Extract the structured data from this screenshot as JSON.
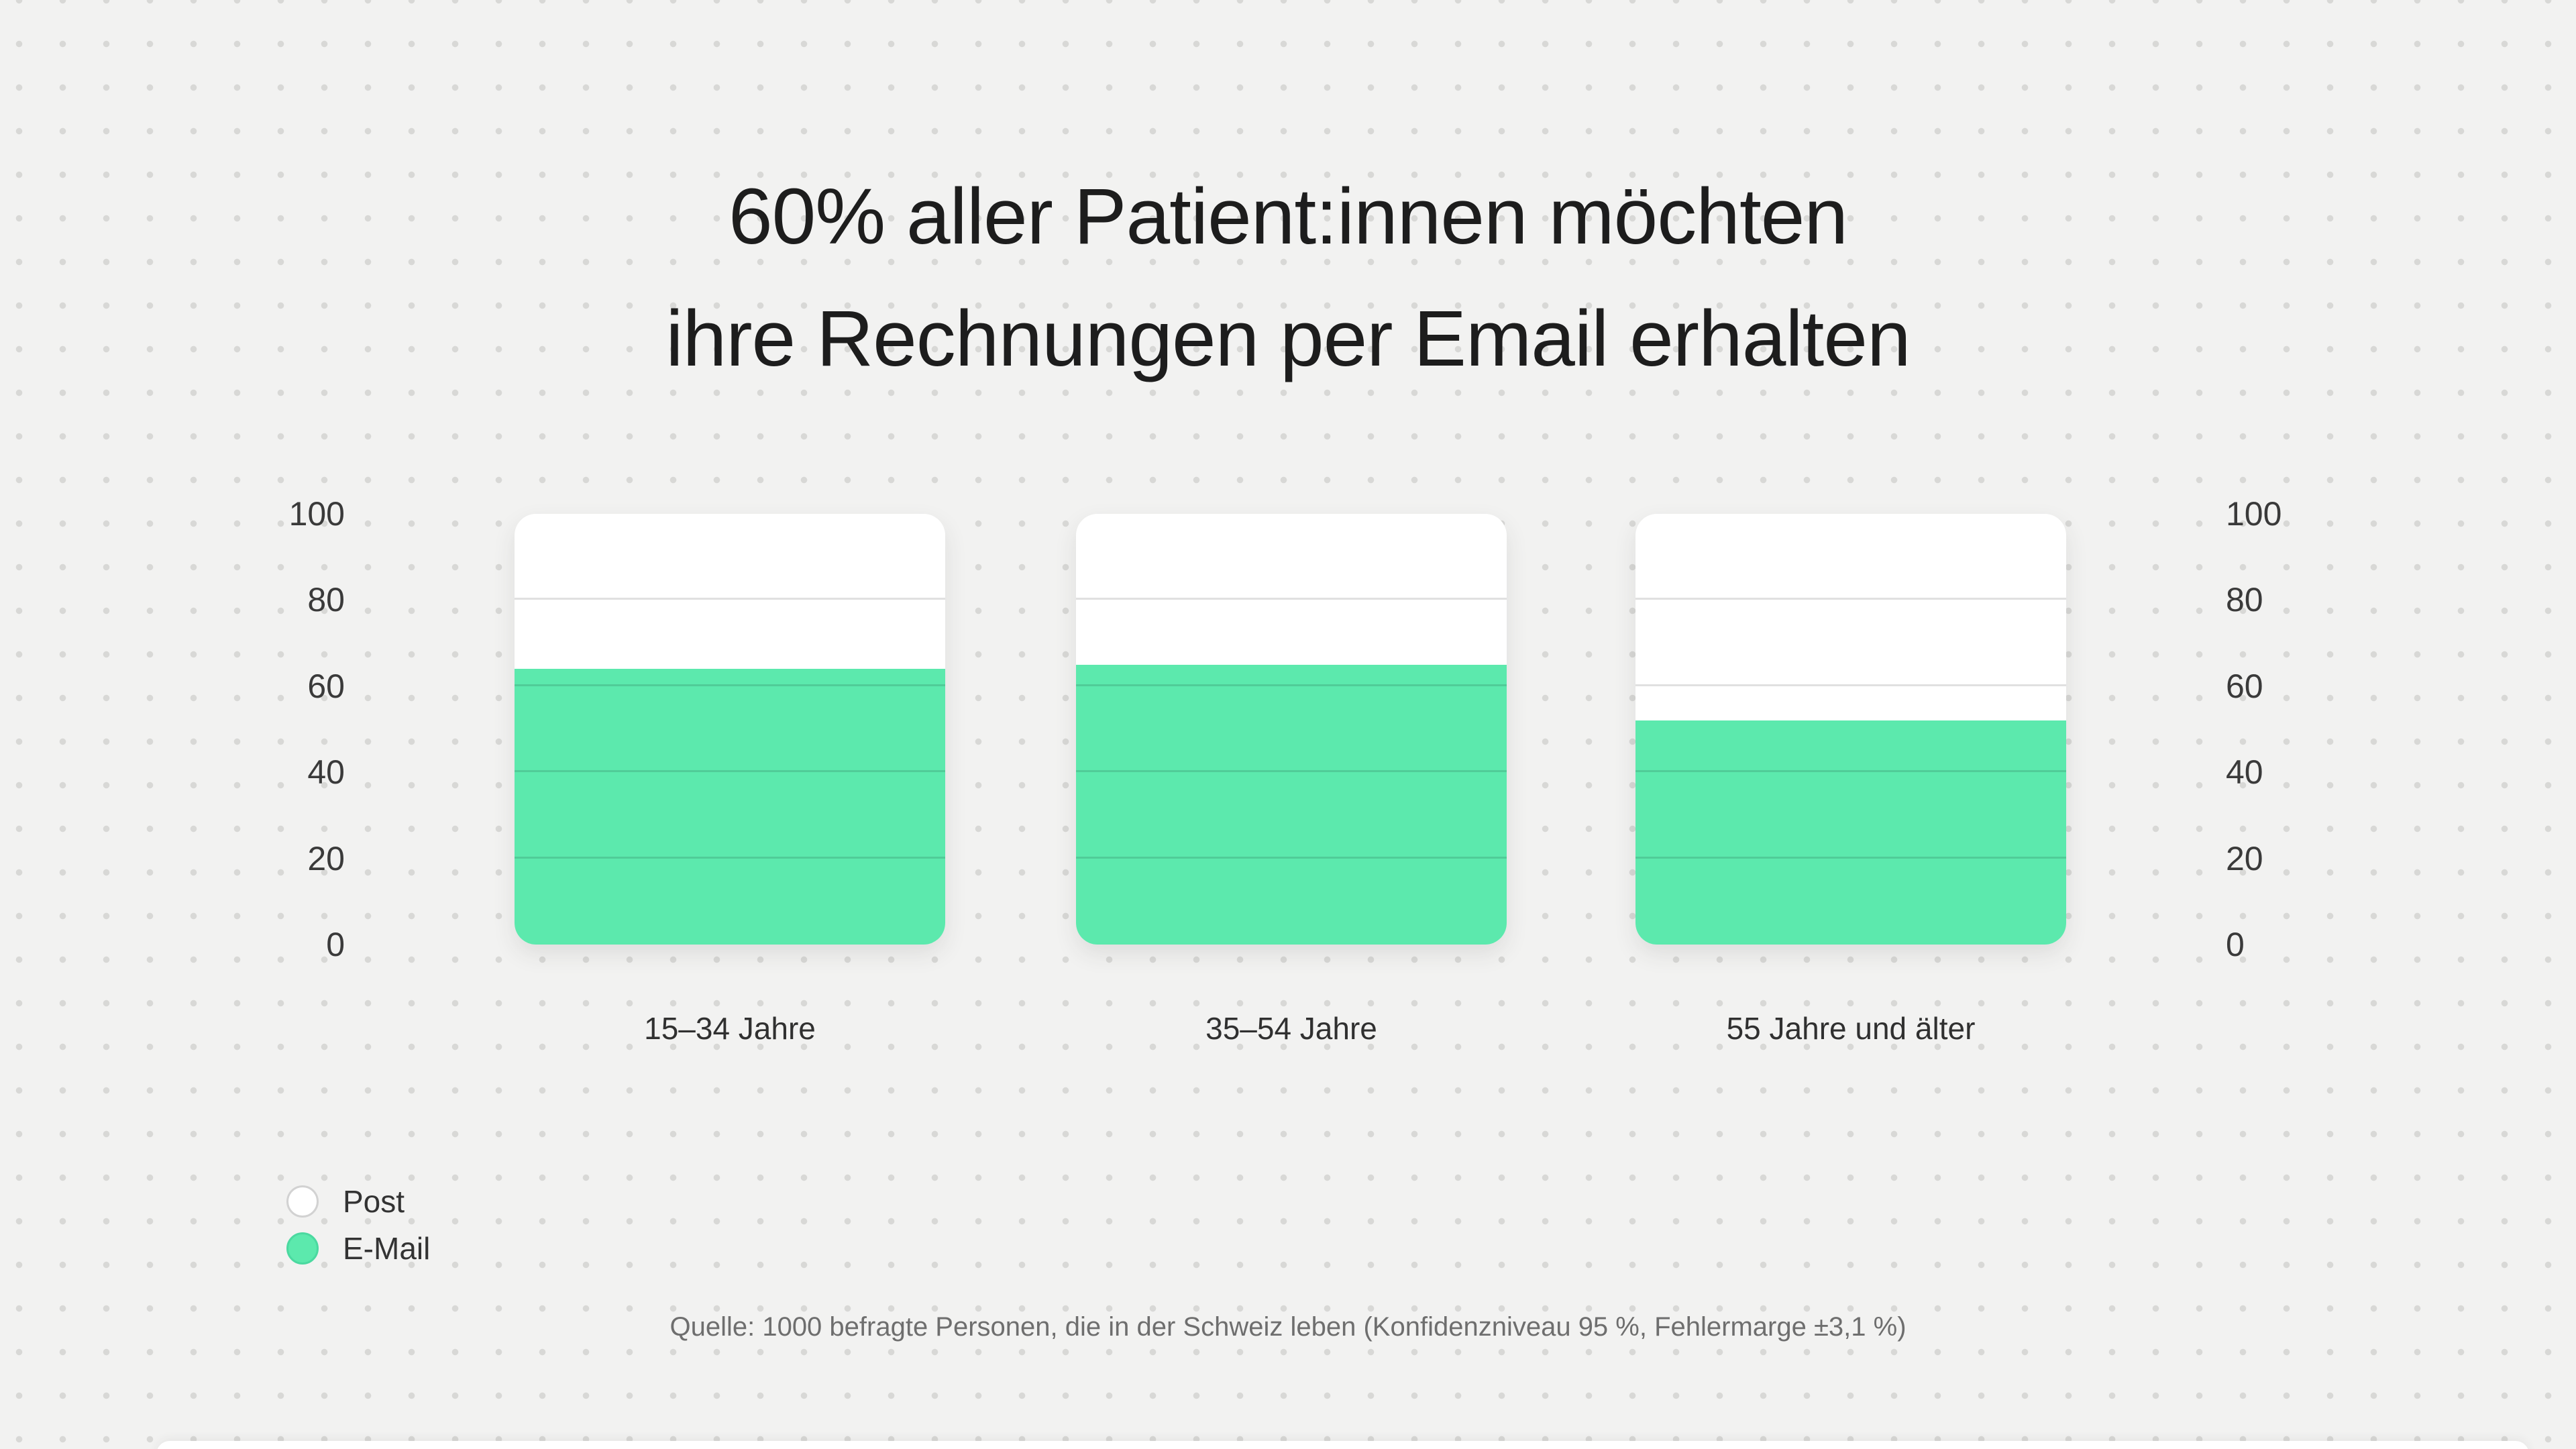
{
  "title": {
    "line1": "60% aller Patient:innen möchten",
    "line2": "ihre Rechnungen per Email erhalten"
  },
  "chart_data": {
    "type": "bar",
    "stacked": true,
    "orientation": "vertical",
    "categories": [
      "15–34 Jahre",
      "35–54 Jahre",
      "55 Jahre und älter"
    ],
    "series": [
      {
        "name": "Post",
        "color": "#ffffff",
        "values": [
          36,
          35,
          48
        ]
      },
      {
        "name": "E-Mail",
        "color": "#5ce9ad",
        "values": [
          64,
          65,
          52
        ]
      }
    ],
    "ylim": [
      0,
      100
    ],
    "yticks": [
      100,
      80,
      60,
      40,
      20,
      0
    ],
    "y_axis_sides": [
      "left",
      "right"
    ],
    "grid": true,
    "gridline_values": [
      80,
      60,
      40,
      20
    ],
    "legend_position": "bottom-left",
    "title": "60% aller Patient:innen möchten ihre Rechnungen per Email erhalten"
  },
  "legend": {
    "items": [
      {
        "label": "Post",
        "color": "#ffffff"
      },
      {
        "label": "E-Mail",
        "color": "#5ce9ad"
      }
    ]
  },
  "source": "Quelle: 1000 befragte Personen, die in der Schweiz leben (Konfidenzniveau 95 %, Fehlermarge ±3,1 %)",
  "colors": {
    "background": "#f2f2f1",
    "dot_grid": "#d8d8d6",
    "accent_green": "#5ce9ad",
    "title_text": "#1d1d1d",
    "tick_text": "#3a3a3a",
    "category_text": "#303030",
    "source_text": "#6e6e6e"
  }
}
